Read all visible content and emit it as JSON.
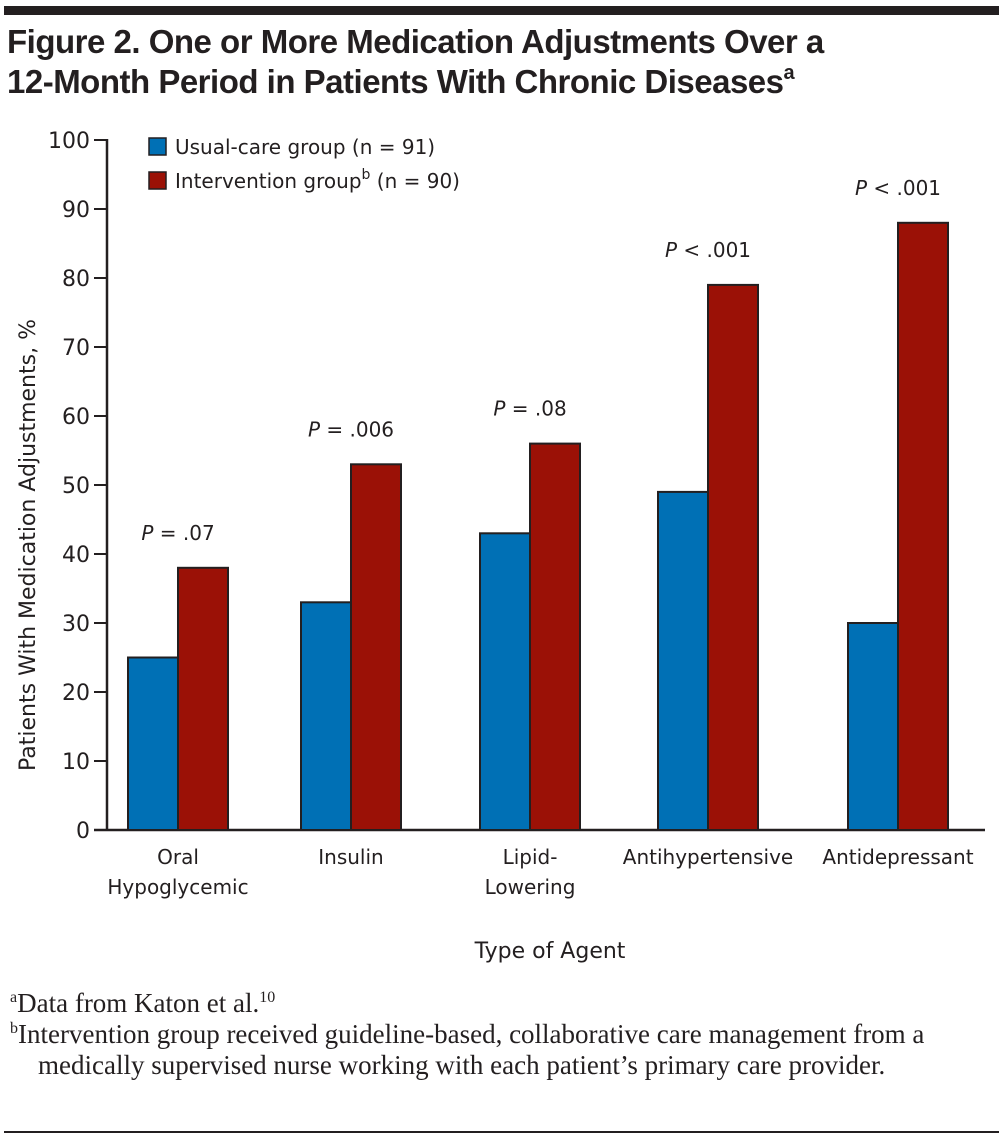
{
  "figure": {
    "title_line1": "Figure 2. One or More Medication Adjustments Over a",
    "title_line2": "12-Month Period in Patients With Chronic Diseases",
    "title_sup": "a"
  },
  "footnotes": [
    {
      "marker": "a",
      "text": "Data from Katon et al.",
      "ref": "10"
    },
    {
      "marker": "b",
      "text": "Intervention group received guideline-based, collaborative care management from a medically supervised nurse working with each patient’s primary care provider."
    }
  ],
  "chart_data": {
    "type": "bar",
    "title": "One or More Medication Adjustments Over a 12-Month Period in Patients With Chronic Diseases",
    "xlabel": "Type of Agent",
    "ylabel": "Patients With Medication Adjustments, %",
    "ylim": [
      0,
      100
    ],
    "yticks": [
      0,
      10,
      20,
      30,
      40,
      50,
      60,
      70,
      80,
      90,
      100
    ],
    "grid": false,
    "legend_position": "top-left",
    "categories": [
      {
        "line1": "Oral",
        "line2": "Hypoglycemic"
      },
      {
        "line1": "Insulin",
        "line2": ""
      },
      {
        "line1": "Lipid-",
        "line2": "Lowering"
      },
      {
        "line1": "Antihypertensive",
        "line2": ""
      },
      {
        "line1": "Antidepressant",
        "line2": ""
      }
    ],
    "series": [
      {
        "name": "Usual-care group (n = 91)",
        "legend_main": "Usual-care group",
        "legend_sup": "",
        "legend_n": " (n = 91)",
        "color": "#0070b5",
        "values": [
          25,
          33,
          43,
          49,
          30
        ]
      },
      {
        "name": "Intervention group (n = 90)",
        "legend_main": "Intervention group",
        "legend_sup": "b",
        "legend_n": " (n = 90)",
        "color": "#9b1106",
        "values": [
          38,
          53,
          56,
          79,
          88
        ]
      }
    ],
    "annotations": [
      {
        "prefix": "P",
        "text": " = .07"
      },
      {
        "prefix": "P",
        "text": " = .006"
      },
      {
        "prefix": "P",
        "text": " = .08"
      },
      {
        "prefix": "P",
        "text": " < .001"
      },
      {
        "prefix": "P",
        "text": " < .001"
      }
    ]
  }
}
